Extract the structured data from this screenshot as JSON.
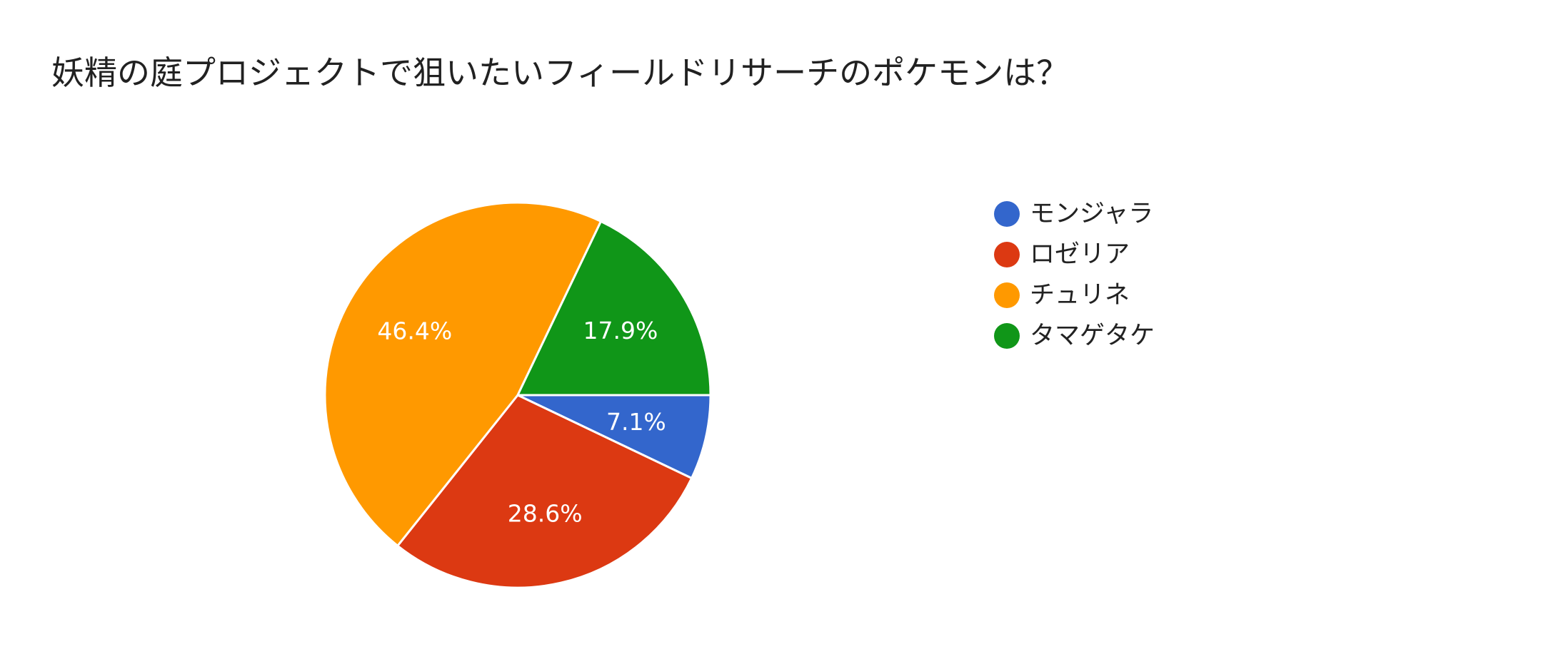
{
  "chart_data": {
    "type": "pie",
    "title": "妖精の庭プロジェクトで狙いたいフィールドリサーチのポケモンは？",
    "categories": [
      "モンジャラ",
      "ロゼリア",
      "チュリネ",
      "タマゲタケ"
    ],
    "values": [
      7.1,
      28.6,
      46.4,
      17.9
    ],
    "value_labels": [
      "7.1%",
      "28.6%",
      "46.4%",
      "17.9%"
    ],
    "colors": [
      "#3366cc",
      "#dc3912",
      "#ff9900",
      "#109618"
    ],
    "start_angle_deg": 0,
    "direction": "clockwise",
    "legend_position": "right"
  }
}
